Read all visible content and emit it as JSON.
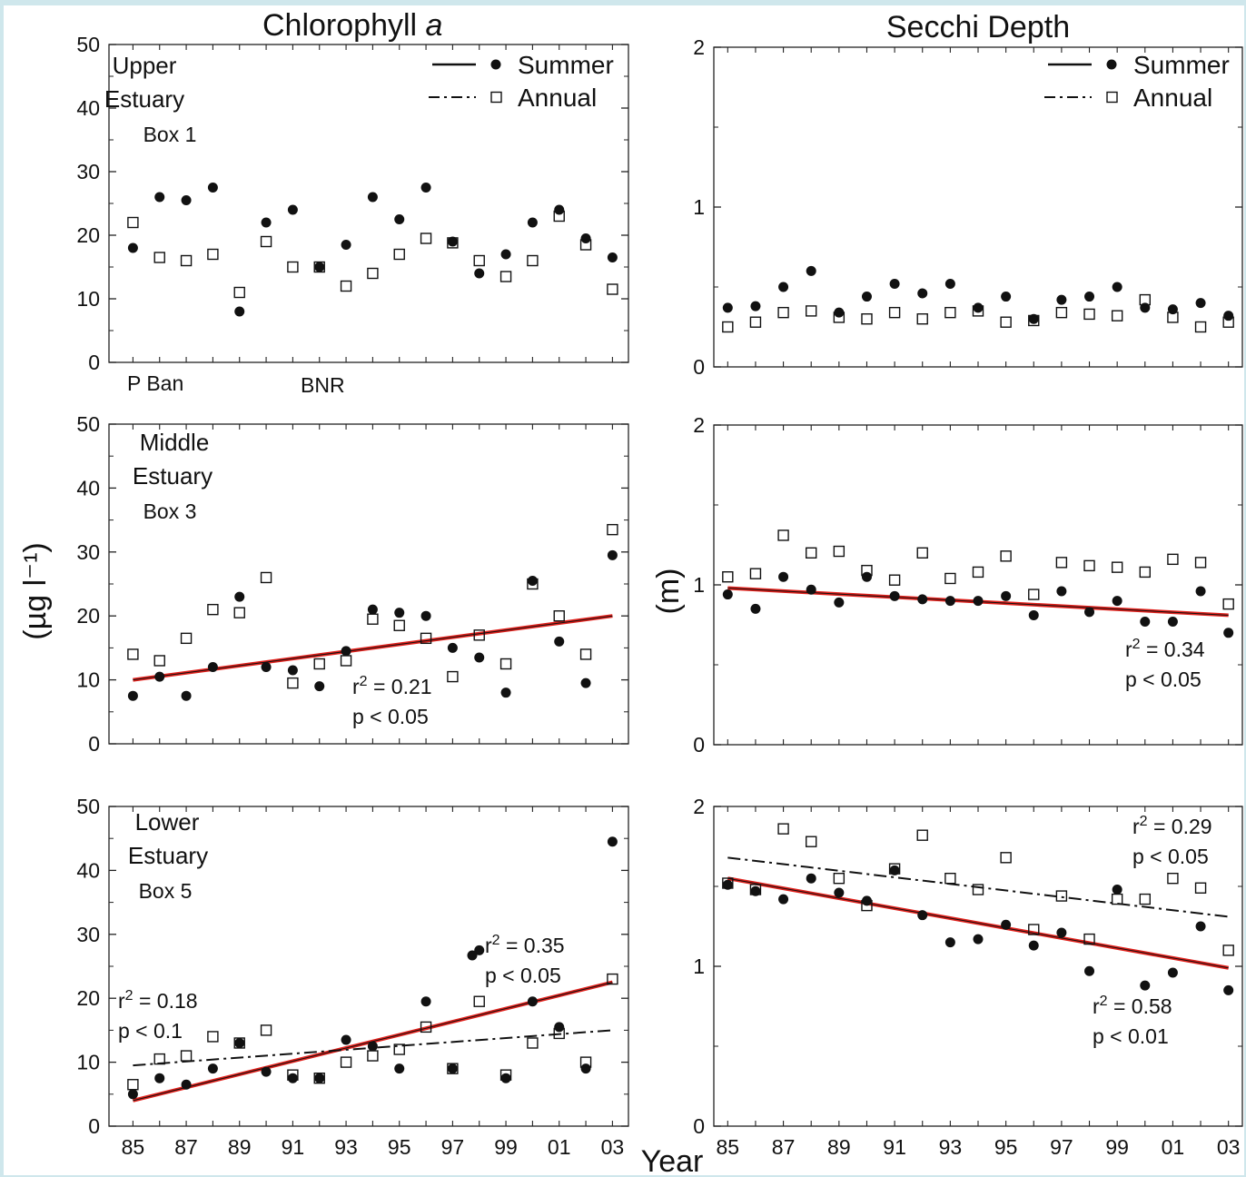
{
  "figure": {
    "title_left": "Chlorophyll",
    "title_left_italic": "a",
    "title_right": "Secchi Depth",
    "ylabel_left": "(µg l⁻¹)",
    "ylabel_right": "(m)",
    "xlabel": "Year",
    "legend": {
      "summer": "Summer",
      "annual": "Annual"
    }
  },
  "chart_data": [
    {
      "id": "chl-upper",
      "type": "scatter",
      "title": "",
      "xlabel": "",
      "ylabel": "(µg l⁻¹)",
      "annotation_lines": [
        "Upper",
        "Estuary",
        "Box 1"
      ],
      "marker_labels": [
        "P Ban",
        "BNR"
      ],
      "ylim": [
        0,
        50
      ],
      "yticks": [
        0,
        10,
        20,
        30,
        40,
        50
      ],
      "xlim": [
        1984.1,
        2003.6
      ],
      "x": [
        1985,
        1986,
        1987,
        1988,
        1989,
        1990,
        1991,
        1992,
        1993,
        1994,
        1995,
        1996,
        1997,
        1998,
        1999,
        2000,
        2001,
        2002,
        2003
      ],
      "xtick_labels": [],
      "legend": true,
      "series": [
        {
          "name": "Summer",
          "marker": "filled-circle",
          "values": [
            18,
            26,
            25.5,
            27.5,
            8,
            22,
            24,
            15,
            18.5,
            26,
            22.5,
            27.5,
            19,
            14,
            17,
            22,
            24,
            19.5,
            16.5
          ]
        },
        {
          "name": "Annual",
          "marker": "open-square",
          "values": [
            22,
            16.5,
            16,
            17,
            11,
            19,
            15,
            15,
            12,
            14,
            17,
            19.5,
            18.8,
            16,
            13.5,
            16,
            23,
            18.5,
            11.5
          ]
        }
      ],
      "fits": [],
      "stats": []
    },
    {
      "id": "chl-middle",
      "type": "scatter",
      "title": "",
      "xlabel": "",
      "ylabel": "(µg l⁻¹)",
      "annotation_lines": [
        "Middle",
        "Estuary",
        "Box 3"
      ],
      "ylim": [
        0,
        50
      ],
      "yticks": [
        0,
        10,
        20,
        30,
        40,
        50
      ],
      "xlim": [
        1984.1,
        2003.6
      ],
      "x": [
        1985,
        1986,
        1987,
        1988,
        1989,
        1990,
        1991,
        1992,
        1993,
        1994,
        1995,
        1996,
        1997,
        1998,
        1999,
        2000,
        2001,
        2002,
        2003
      ],
      "xtick_labels": [],
      "legend": false,
      "series": [
        {
          "name": "Summer",
          "marker": "filled-circle",
          "values": [
            7.5,
            10.5,
            7.5,
            12,
            23,
            12,
            11.5,
            9,
            14.5,
            21,
            20.5,
            20,
            15,
            13.5,
            8,
            25.5,
            16,
            9.5,
            29.5
          ]
        },
        {
          "name": "Annual",
          "marker": "open-square",
          "values": [
            14,
            13,
            16.5,
            21,
            20.5,
            26,
            9.5,
            12.5,
            13,
            19.5,
            18.5,
            16.5,
            10.5,
            17,
            12.5,
            25,
            20,
            14,
            33.5
          ]
        }
      ],
      "fits": [
        {
          "series": "Summer",
          "style": "red",
          "x": [
            1985,
            2003
          ],
          "y": [
            10,
            20
          ]
        }
      ],
      "stats": [
        {
          "r2": "0.21",
          "p": "p < 0.05"
        }
      ]
    },
    {
      "id": "chl-lower",
      "type": "scatter",
      "title": "",
      "xlabel": "Year",
      "ylabel": "(µg l⁻¹)",
      "annotation_lines": [
        "Lower",
        "Estuary",
        "Box 5"
      ],
      "ylim": [
        0,
        50
      ],
      "yticks": [
        0,
        10,
        20,
        30,
        40,
        50
      ],
      "xlim": [
        1984.1,
        2003.6
      ],
      "x": [
        1985,
        1986,
        1987,
        1988,
        1989,
        1990,
        1991,
        1992,
        1993,
        1994,
        1995,
        1996,
        1997,
        1998,
        1999,
        2000,
        2001,
        2002,
        2003
      ],
      "xtick_labels": [
        "85",
        "87",
        "89",
        "91",
        "93",
        "95",
        "97",
        "99",
        "01",
        "03"
      ],
      "legend": false,
      "series": [
        {
          "name": "Summer",
          "marker": "filled-circle",
          "values": [
            5,
            7.5,
            6.5,
            9,
            13,
            8.5,
            7.5,
            7.5,
            13.5,
            12.5,
            9,
            19.5,
            9,
            27.5,
            7.5,
            19.5,
            15.5,
            9,
            44.5
          ]
        },
        {
          "name": "Annual",
          "marker": "open-square",
          "values": [
            6.5,
            10.5,
            11,
            14,
            13,
            15,
            8,
            7.5,
            10,
            11,
            12,
            15.5,
            9,
            19.5,
            8,
            13,
            14.5,
            10,
            23
          ]
        }
      ],
      "fits": [
        {
          "series": "Summer",
          "style": "red",
          "x": [
            1985,
            2003
          ],
          "y": [
            4,
            22.5
          ]
        },
        {
          "series": "Annual",
          "style": "dash-dot",
          "x": [
            1985,
            2003
          ],
          "y": [
            9.5,
            15
          ]
        }
      ],
      "stats": [
        {
          "r2": "0.18",
          "p": "p < 0.1"
        },
        {
          "r2": "0.35",
          "p": "p < 0.05"
        }
      ]
    },
    {
      "id": "secchi-upper",
      "type": "scatter",
      "title": "",
      "xlabel": "",
      "ylabel": "(m)",
      "ylim": [
        0,
        2
      ],
      "yticks": [
        0,
        1,
        2
      ],
      "xlim": [
        1984.5,
        2003.5
      ],
      "x": [
        1985,
        1986,
        1987,
        1988,
        1989,
        1990,
        1991,
        1992,
        1993,
        1994,
        1995,
        1996,
        1997,
        1998,
        1999,
        2000,
        2001,
        2002,
        2003
      ],
      "xtick_labels": [],
      "legend": true,
      "series": [
        {
          "name": "Summer",
          "marker": "filled-circle",
          "values": [
            0.37,
            0.38,
            0.5,
            0.6,
            0.34,
            0.44,
            0.52,
            0.46,
            0.52,
            0.37,
            0.44,
            0.3,
            0.42,
            0.44,
            0.5,
            0.37,
            0.36,
            0.4,
            0.32
          ]
        },
        {
          "name": "Annual",
          "marker": "open-square",
          "values": [
            0.25,
            0.28,
            0.34,
            0.35,
            0.31,
            0.3,
            0.34,
            0.3,
            0.34,
            0.35,
            0.28,
            0.29,
            0.34,
            0.33,
            0.32,
            0.42,
            0.31,
            0.25,
            0.28
          ]
        }
      ],
      "fits": [],
      "stats": []
    },
    {
      "id": "secchi-middle",
      "type": "scatter",
      "title": "",
      "xlabel": "",
      "ylabel": "(m)",
      "ylim": [
        0,
        2
      ],
      "yticks": [
        0,
        1,
        2
      ],
      "xlim": [
        1984.5,
        2003.5
      ],
      "x": [
        1985,
        1986,
        1987,
        1988,
        1989,
        1990,
        1991,
        1992,
        1993,
        1994,
        1995,
        1996,
        1997,
        1998,
        1999,
        2000,
        2001,
        2002,
        2003
      ],
      "xtick_labels": [],
      "legend": false,
      "series": [
        {
          "name": "Summer",
          "marker": "filled-circle",
          "values": [
            0.94,
            0.85,
            1.05,
            0.97,
            0.89,
            1.05,
            0.93,
            0.91,
            0.9,
            0.9,
            0.93,
            0.81,
            0.96,
            0.83,
            0.9,
            0.77,
            0.77,
            0.96,
            0.7
          ]
        },
        {
          "name": "Annual",
          "marker": "open-square",
          "values": [
            1.05,
            1.07,
            1.31,
            1.2,
            1.21,
            1.09,
            1.03,
            1.2,
            1.04,
            1.08,
            1.18,
            0.94,
            1.14,
            1.12,
            1.11,
            1.08,
            1.16,
            1.14,
            0.88
          ]
        }
      ],
      "fits": [
        {
          "series": "Summer",
          "style": "red",
          "x": [
            1985,
            2003
          ],
          "y": [
            0.98,
            0.81
          ]
        }
      ],
      "stats": [
        {
          "r2": "0.34",
          "p": "p < 0.05"
        }
      ]
    },
    {
      "id": "secchi-lower",
      "type": "scatter",
      "title": "",
      "xlabel": "Year",
      "ylabel": "(m)",
      "ylim": [
        0,
        2
      ],
      "yticks": [
        0,
        1,
        2
      ],
      "xlim": [
        1984.5,
        2003.5
      ],
      "x": [
        1985,
        1986,
        1987,
        1988,
        1989,
        1990,
        1991,
        1992,
        1993,
        1994,
        1995,
        1996,
        1997,
        1998,
        1999,
        2000,
        2001,
        2002,
        2003
      ],
      "xtick_labels": [
        "85",
        "87",
        "89",
        "91",
        "93",
        "95",
        "97",
        "99",
        "01",
        "03"
      ],
      "legend": false,
      "series": [
        {
          "name": "Summer",
          "marker": "filled-circle",
          "values": [
            1.51,
            1.47,
            1.42,
            1.55,
            1.46,
            1.41,
            1.6,
            1.32,
            1.15,
            1.17,
            1.26,
            1.13,
            1.21,
            0.97,
            1.48,
            0.88,
            0.96,
            1.25,
            0.85
          ]
        },
        {
          "name": "Annual",
          "marker": "open-square",
          "values": [
            1.52,
            1.48,
            1.86,
            1.78,
            1.55,
            1.38,
            1.61,
            1.82,
            1.55,
            1.48,
            1.68,
            1.23,
            1.44,
            1.17,
            1.42,
            1.42,
            1.55,
            1.49,
            1.1
          ]
        }
      ],
      "fits": [
        {
          "series": "Annual",
          "style": "dash-dot",
          "x": [
            1985,
            2003
          ],
          "y": [
            1.68,
            1.31
          ]
        },
        {
          "series": "Summer",
          "style": "red",
          "x": [
            1985,
            2003
          ],
          "y": [
            1.55,
            0.99
          ]
        }
      ],
      "stats": [
        {
          "r2": "0.29",
          "p": "p < 0.05"
        },
        {
          "r2": "0.58",
          "p": "p < 0.01"
        }
      ]
    }
  ]
}
